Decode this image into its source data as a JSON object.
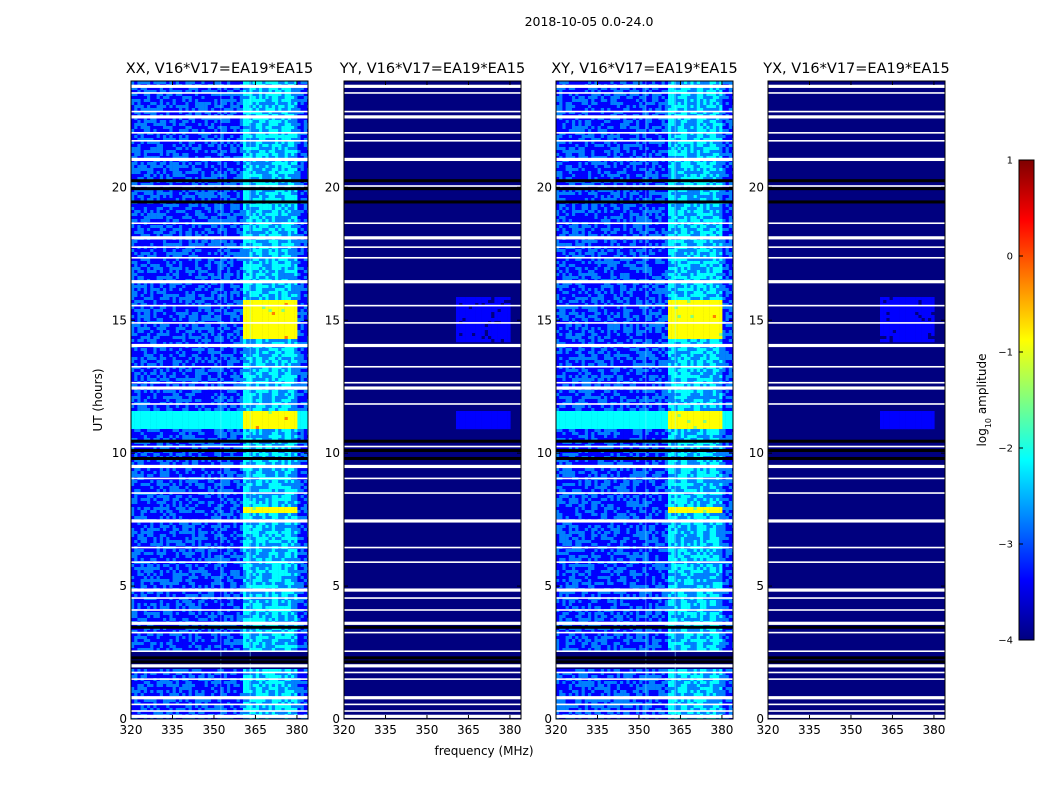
{
  "figure": {
    "suptitle": "2018-10-05 0.0-24.0"
  },
  "colors": {
    "background": "#00007f",
    "flag_white": "#ffffff",
    "flag_black": "#000000",
    "colormap": [
      "#00007f",
      "#0000ff",
      "#0080ff",
      "#00ffff",
      "#80ff80",
      "#ffff00",
      "#ff8000",
      "#ff0000",
      "#7f0000"
    ]
  },
  "chart_data": [
    {
      "type": "heatmap",
      "title": "XX, V16*V17=EA19*EA15",
      "xlabel": "",
      "ylabel": "UT (hours)",
      "xticks": [
        "320",
        "335",
        "350",
        "365",
        "380"
      ],
      "yticks": [
        "0",
        "5",
        "10",
        "15",
        "20"
      ],
      "x_tick_values": [
        320,
        335,
        350,
        365,
        380
      ],
      "y_tick_values": [
        0,
        5,
        10,
        15,
        20
      ],
      "xlim": [
        320,
        384
      ],
      "ylim": [
        0,
        24
      ],
      "activity": "high",
      "peak_log10": -0.6,
      "peak_windows_hours": [
        [
          10.9,
          11.6
        ],
        [
          14.3,
          15.8
        ],
        [
          7.7,
          8.0
        ]
      ],
      "rfi_band_mhz": [
        360,
        380
      ]
    },
    {
      "type": "heatmap",
      "title": "YY, V16*V17=EA19*EA15",
      "xlabel": "",
      "ylabel": "",
      "xticks": [
        "320",
        "335",
        "350",
        "365",
        "380"
      ],
      "yticks": [
        "0",
        "5",
        "10",
        "15",
        "20"
      ],
      "x_tick_values": [
        320,
        335,
        350,
        365,
        380
      ],
      "y_tick_values": [
        0,
        5,
        10,
        15,
        20
      ],
      "xlim": [
        320,
        384
      ],
      "ylim": [
        0,
        24
      ],
      "activity": "low",
      "peak_log10": -3.2,
      "peak_windows_hours": [
        [
          10.9,
          11.6
        ]
      ],
      "rfi_band_mhz": [
        360,
        380
      ]
    },
    {
      "type": "heatmap",
      "title": "XY, V16*V17=EA19*EA15",
      "xlabel": "",
      "ylabel": "",
      "xticks": [
        "320",
        "335",
        "350",
        "365",
        "380"
      ],
      "yticks": [
        "0",
        "5",
        "10",
        "15",
        "20"
      ],
      "x_tick_values": [
        320,
        335,
        350,
        365,
        380
      ],
      "y_tick_values": [
        0,
        5,
        10,
        15,
        20
      ],
      "xlim": [
        320,
        384
      ],
      "ylim": [
        0,
        24
      ],
      "activity": "high",
      "peak_log10": -0.6,
      "peak_windows_hours": [
        [
          10.9,
          11.6
        ],
        [
          14.3,
          15.8
        ],
        [
          7.7,
          8.0
        ]
      ],
      "rfi_band_mhz": [
        360,
        380
      ]
    },
    {
      "type": "heatmap",
      "title": "YX, V16*V17=EA19*EA15",
      "xlabel": "",
      "ylabel": "",
      "xticks": [
        "320",
        "335",
        "350",
        "365",
        "380"
      ],
      "yticks": [
        "0",
        "5",
        "10",
        "15",
        "20"
      ],
      "x_tick_values": [
        320,
        335,
        350,
        365,
        380
      ],
      "y_tick_values": [
        0,
        5,
        10,
        15,
        20
      ],
      "xlim": [
        320,
        384
      ],
      "ylim": [
        0,
        24
      ],
      "activity": "low",
      "peak_log10": -3.3,
      "peak_windows_hours": [
        [
          10.9,
          11.6
        ]
      ],
      "rfi_band_mhz": [
        360,
        380
      ]
    }
  ],
  "shared_xlabel": "frequency (MHz)",
  "flags": {
    "white_gaps_hours": [
      0.1,
      0.3,
      0.55,
      0.8,
      1.5,
      1.75,
      2.0,
      2.55,
      3.25,
      3.6,
      4.1,
      4.55,
      4.85,
      5.9,
      6.45,
      7.45,
      8.5,
      9.05,
      9.5,
      10.25,
      11.85,
      12.45,
      12.65,
      13.25,
      14.05,
      14.9,
      15.55,
      16.45,
      17.35,
      17.75,
      18.1,
      18.65,
      20.05,
      21.05,
      21.75,
      22.05,
      22.65,
      22.85,
      23.55,
      23.8
    ],
    "black_gaps_hours": [
      2.15,
      2.3,
      3.45,
      9.8,
      10.1,
      10.45,
      19.45,
      19.95,
      20.25
    ],
    "extra_spike_channels_mhz": [
      352.5,
      363.1
    ]
  },
  "colorbar": {
    "label": "log10 amplitude",
    "label_main": "log",
    "label_sub": "10",
    "label_rest": " amplitude",
    "ticks": [
      "1",
      "0",
      "−1",
      "−2",
      "−3",
      "−4"
    ],
    "tick_values": [
      1,
      0,
      -1,
      -2,
      -3,
      -4
    ],
    "vmin": -4,
    "vmax": 1
  }
}
